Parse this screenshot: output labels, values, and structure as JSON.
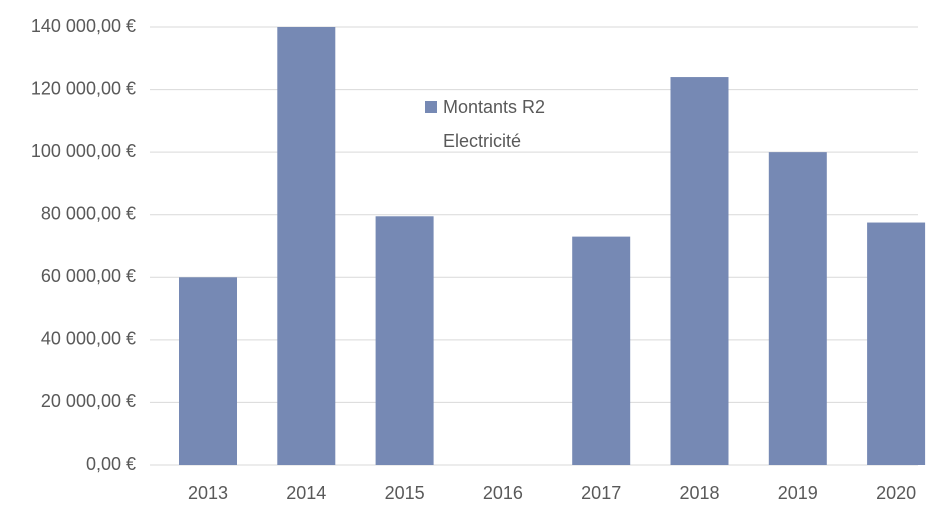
{
  "chart_data": {
    "type": "bar",
    "categories": [
      "2013",
      "2014",
      "2015",
      "2016",
      "2017",
      "2018",
      "2019",
      "2020"
    ],
    "series": [
      {
        "name": "Montants R2 Electricité",
        "color": "#7689b4",
        "values": [
          60000,
          140000,
          79500,
          0,
          73000,
          124000,
          100000,
          77500
        ]
      }
    ],
    "ylim": [
      0,
      140000
    ],
    "yticks": [
      {
        "value": 0,
        "label": "0,00 €"
      },
      {
        "value": 20000,
        "label": "20 000,00 €"
      },
      {
        "value": 40000,
        "label": "40 000,00 €"
      },
      {
        "value": 60000,
        "label": "60 000,00 €"
      },
      {
        "value": 80000,
        "label": "80 000,00 €"
      },
      {
        "value": 100000,
        "label": "100 000,00 €"
      },
      {
        "value": 120000,
        "label": "120 000,00 €"
      },
      {
        "value": 140000,
        "label": "140 000,00 €"
      }
    ],
    "grid": true,
    "legend": "top"
  }
}
